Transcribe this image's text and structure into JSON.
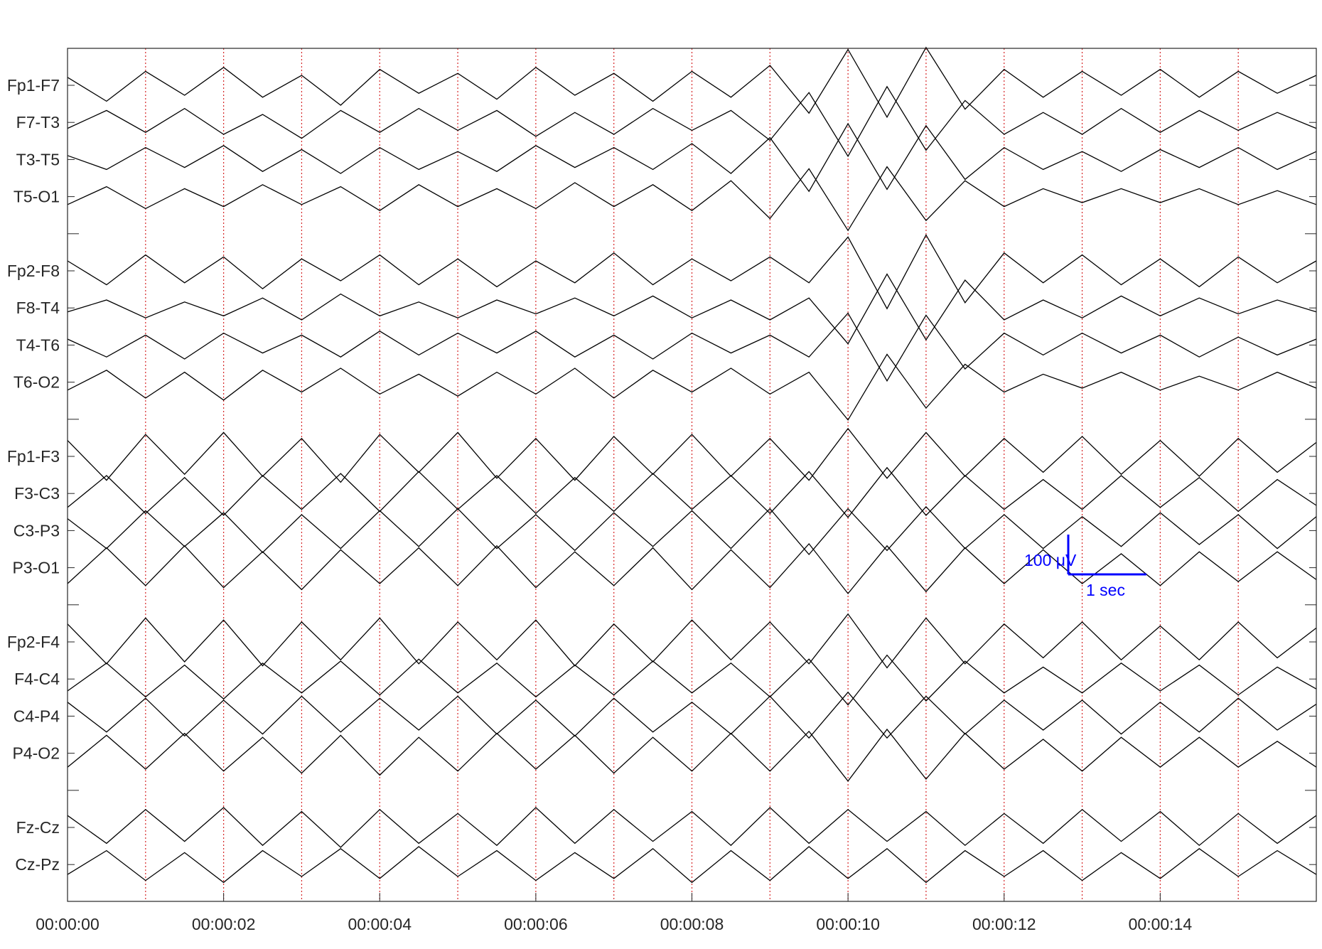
{
  "chart_data": {
    "type": "eeg",
    "xlabel": "Time",
    "xlim": [
      0,
      16
    ],
    "xticks": [
      {
        "value": 0,
        "label": "00:00:00"
      },
      {
        "value": 2,
        "label": "00:00:02"
      },
      {
        "value": 4,
        "label": "00:00:04"
      },
      {
        "value": 6,
        "label": "00:00:06"
      },
      {
        "value": 8,
        "label": "00:00:08"
      },
      {
        "value": 10,
        "label": "00:00:10"
      },
      {
        "value": 12,
        "label": "00:00:12"
      },
      {
        "value": 14,
        "label": "00:00:14"
      }
    ],
    "xgrid": [
      1,
      2,
      3,
      4,
      5,
      6,
      7,
      8,
      9,
      10,
      11,
      12,
      13,
      14,
      15
    ],
    "grid_color": "#d62728",
    "line_color": "#000000",
    "x": [
      0,
      0.5,
      1,
      1.5,
      2,
      2.5,
      3,
      3.5,
      4,
      4.5,
      5,
      5.5,
      6,
      6.5,
      7,
      7.5,
      8,
      8.5,
      9,
      9.5,
      10,
      10.5,
      11,
      11.5,
      12,
      12.5,
      13,
      13.5,
      14,
      14.5,
      15,
      15.5,
      16
    ],
    "series": [
      {
        "name": "Fp1-F7",
        "values": [
          20,
          -40,
          35,
          -25,
          45,
          -30,
          25,
          -50,
          40,
          -20,
          30,
          -35,
          45,
          -25,
          30,
          -40,
          35,
          -30,
          50,
          -70,
          90,
          -80,
          95,
          -60,
          40,
          -30,
          35,
          -25,
          40,
          -30,
          35,
          -20,
          25
        ]
      },
      {
        "name": "F7-T3",
        "values": [
          -15,
          30,
          -25,
          35,
          -30,
          20,
          -40,
          30,
          -25,
          35,
          -20,
          30,
          -35,
          25,
          -30,
          35,
          -20,
          30,
          -45,
          75,
          -85,
          90,
          -70,
          55,
          -30,
          25,
          -30,
          35,
          -25,
          30,
          -20,
          25,
          -15
        ]
      },
      {
        "name": "T3-T5",
        "values": [
          10,
          -25,
          30,
          -20,
          35,
          -30,
          25,
          -35,
          30,
          -25,
          20,
          -30,
          35,
          -20,
          30,
          -25,
          40,
          -35,
          55,
          -80,
          90,
          -75,
          85,
          -50,
          30,
          -25,
          20,
          -30,
          25,
          -20,
          30,
          -25,
          20
        ]
      },
      {
        "name": "T5-O1",
        "values": [
          -20,
          25,
          -30,
          20,
          -25,
          30,
          -20,
          25,
          -35,
          30,
          -25,
          20,
          -30,
          35,
          -25,
          30,
          -35,
          40,
          -55,
          70,
          -85,
          75,
          -60,
          40,
          -25,
          20,
          -15,
          20,
          -15,
          20,
          -20,
          15,
          -20
        ]
      },
      {
        "name": "Fp2-F8",
        "values": [
          25,
          -35,
          40,
          -30,
          35,
          -45,
          30,
          -25,
          40,
          -35,
          30,
          -40,
          25,
          -30,
          45,
          -35,
          30,
          -25,
          35,
          -30,
          85,
          -95,
          90,
          -80,
          45,
          -30,
          40,
          -35,
          30,
          -40,
          35,
          -30,
          25
        ]
      },
      {
        "name": "F8-T4",
        "values": [
          -10,
          20,
          -25,
          15,
          -20,
          25,
          -30,
          35,
          -20,
          15,
          -25,
          20,
          -15,
          25,
          -20,
          30,
          -25,
          20,
          -30,
          25,
          -90,
          85,
          -80,
          70,
          -30,
          20,
          -25,
          30,
          -20,
          25,
          -15,
          20,
          -10
        ]
      },
      {
        "name": "T4-T6",
        "values": [
          15,
          -30,
          25,
          -35,
          30,
          -20,
          25,
          -30,
          35,
          -25,
          30,
          -20,
          35,
          -30,
          25,
          -35,
          30,
          -20,
          25,
          -30,
          80,
          -90,
          75,
          -60,
          30,
          -25,
          30,
          -20,
          25,
          -30,
          20,
          -25,
          15
        ]
      },
      {
        "name": "T6-O2",
        "values": [
          -20,
          30,
          -40,
          25,
          -45,
          30,
          -25,
          35,
          -30,
          20,
          -35,
          25,
          -30,
          35,
          -40,
          30,
          -25,
          35,
          -30,
          25,
          -95,
          70,
          -65,
          45,
          -25,
          20,
          -15,
          25,
          -20,
          15,
          -20,
          25,
          -15
        ]
      },
      {
        "name": "Fp1-F3",
        "values": [
          40,
          -60,
          55,
          -45,
          60,
          -50,
          45,
          -65,
          55,
          -40,
          60,
          -55,
          45,
          -60,
          50,
          -45,
          55,
          -50,
          45,
          -60,
          70,
          -55,
          60,
          -50,
          45,
          -40,
          50,
          -45,
          40,
          -50,
          45,
          -40,
          35
        ]
      },
      {
        "name": "F3-C3",
        "values": [
          -35,
          45,
          -50,
          40,
          -55,
          45,
          -40,
          50,
          -45,
          55,
          -40,
          45,
          -50,
          40,
          -45,
          50,
          -40,
          45,
          -50,
          55,
          -60,
          65,
          -55,
          45,
          -40,
          35,
          -40,
          45,
          -35,
          40,
          -45,
          35,
          -30
        ]
      },
      {
        "name": "C3-P3",
        "values": [
          30,
          -45,
          50,
          -40,
          45,
          -55,
          40,
          -45,
          50,
          -40,
          55,
          -45,
          40,
          -50,
          45,
          -40,
          50,
          -45,
          55,
          -60,
          55,
          -50,
          60,
          -45,
          40,
          -45,
          35,
          -40,
          45,
          -35,
          40,
          -45,
          35
        ]
      },
      {
        "name": "P3-O1",
        "values": [
          -40,
          50,
          -45,
          55,
          -50,
          40,
          -55,
          45,
          -40,
          50,
          -45,
          55,
          -50,
          40,
          -45,
          50,
          -55,
          45,
          -50,
          60,
          -65,
          55,
          -60,
          50,
          -40,
          45,
          -40,
          35,
          -45,
          40,
          -35,
          40,
          -30
        ]
      },
      {
        "name": "Fp2-F4",
        "values": [
          45,
          -55,
          60,
          -50,
          55,
          -60,
          50,
          -45,
          60,
          -55,
          50,
          -45,
          55,
          -60,
          45,
          -50,
          55,
          -45,
          50,
          -55,
          70,
          -65,
          60,
          -55,
          45,
          -40,
          50,
          -45,
          40,
          -45,
          50,
          -40,
          35
        ]
      },
      {
        "name": "F4-C4",
        "values": [
          -30,
          40,
          -45,
          35,
          -50,
          40,
          -35,
          45,
          -40,
          50,
          -35,
          40,
          -45,
          35,
          -40,
          45,
          -35,
          40,
          -45,
          50,
          -65,
          60,
          -55,
          45,
          -35,
          30,
          -35,
          40,
          -30,
          35,
          -40,
          30,
          -25
        ]
      },
      {
        "name": "C4-P4",
        "values": [
          35,
          -40,
          45,
          -50,
          40,
          -45,
          50,
          -40,
          45,
          -35,
          50,
          -45,
          40,
          -50,
          45,
          -40,
          35,
          -45,
          50,
          -55,
          60,
          -55,
          50,
          -45,
          40,
          -35,
          40,
          -45,
          35,
          -40,
          45,
          -35,
          30
        ]
      },
      {
        "name": "P4-O2",
        "values": [
          -35,
          45,
          -40,
          50,
          -45,
          40,
          -50,
          45,
          -55,
          40,
          -45,
          50,
          -40,
          45,
          -50,
          40,
          -45,
          50,
          -45,
          55,
          -70,
          60,
          -65,
          50,
          -40,
          35,
          -45,
          40,
          -35,
          40,
          -35,
          30,
          -35
        ]
      },
      {
        "name": "Fz-Cz",
        "values": [
          30,
          -40,
          45,
          -35,
          50,
          -45,
          40,
          -50,
          45,
          -40,
          35,
          -45,
          50,
          -40,
          45,
          -35,
          40,
          -45,
          50,
          -40,
          45,
          -35,
          40,
          -45,
          35,
          -40,
          45,
          -35,
          40,
          -45,
          35,
          -40,
          30
        ]
      },
      {
        "name": "Cz-Pz",
        "values": [
          -25,
          35,
          -40,
          30,
          -45,
          35,
          -30,
          40,
          -35,
          45,
          -30,
          35,
          -40,
          30,
          -35,
          40,
          -45,
          35,
          -40,
          45,
          -35,
          40,
          -45,
          35,
          -30,
          35,
          -40,
          30,
          -35,
          40,
          -30,
          35,
          -25
        ]
      }
    ],
    "scale_bar": {
      "amplitude": 100,
      "amplitude_label": "100 μV",
      "duration": 1,
      "duration_label": "1 sec",
      "color": "#0000ff"
    }
  }
}
